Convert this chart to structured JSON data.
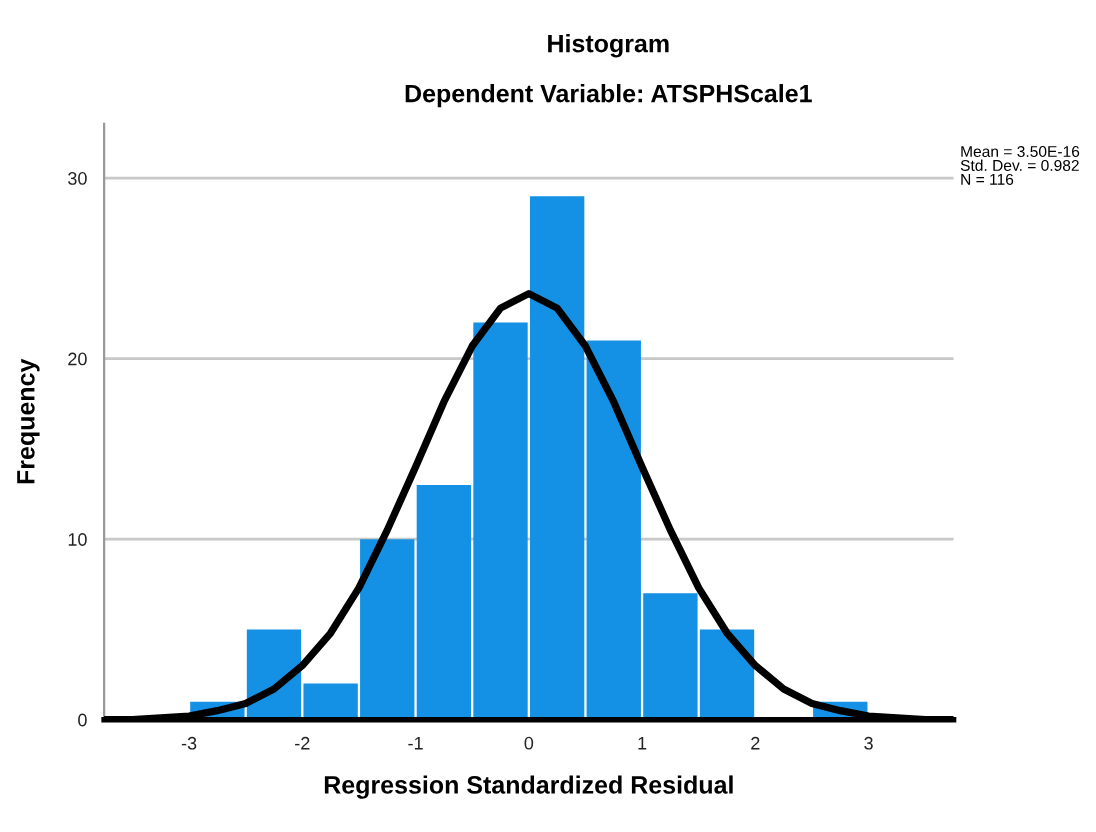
{
  "chart_data": {
    "type": "histogram",
    "title": "Histogram",
    "subtitle": "Dependent Variable: ATSPHScale1",
    "xlabel": "Regression Standardized Residual",
    "ylabel": "Frequency",
    "bins": [
      -3,
      -2.5,
      -2,
      -1.5,
      -1,
      -0.5,
      0,
      0.5,
      1,
      1.5,
      2,
      2.5,
      3
    ],
    "series": [
      {
        "color": "#1490e4",
        "values": [
          1,
          5,
          2,
          10,
          13,
          22,
          29,
          21,
          7,
          5,
          0,
          1
        ]
      },
      {
        "type": "line",
        "color": "#000000",
        "x": [
          -3.75,
          -3.5,
          -3.25,
          -3,
          -2.75,
          -2.5,
          -2.25,
          -2,
          -1.75,
          -1.5,
          -1.25,
          -1,
          -0.75,
          -0.5,
          -0.25,
          0,
          0.25,
          0.5,
          0.75,
          1,
          1.25,
          1.5,
          1.75,
          2,
          2.25,
          2.5,
          2.75,
          3,
          3.25,
          3.5,
          3.75
        ],
        "values": [
          0.0,
          0.0,
          0.1,
          0.2,
          0.5,
          0.9,
          1.7,
          3.0,
          4.8,
          7.3,
          10.5,
          14.0,
          17.6,
          20.7,
          22.8,
          23.6,
          22.8,
          20.7,
          17.6,
          14.0,
          10.5,
          7.3,
          4.8,
          3.0,
          1.7,
          0.9,
          0.5,
          0.2,
          0.1,
          0.0,
          0.0
        ]
      }
    ],
    "xlim": [
      -3.75,
      3.75
    ],
    "ylim": [
      0,
      33
    ],
    "xticks": [
      -3,
      -2,
      -1,
      0,
      1,
      2,
      3
    ],
    "yticks": [
      0,
      10,
      20,
      30
    ],
    "grid": "y",
    "legend": false,
    "marker": "none",
    "line_style": "solid",
    "annotations": [
      "Mean = 3.50E-16\nStd. Dev. = 0.982\nN = 116"
    ]
  }
}
